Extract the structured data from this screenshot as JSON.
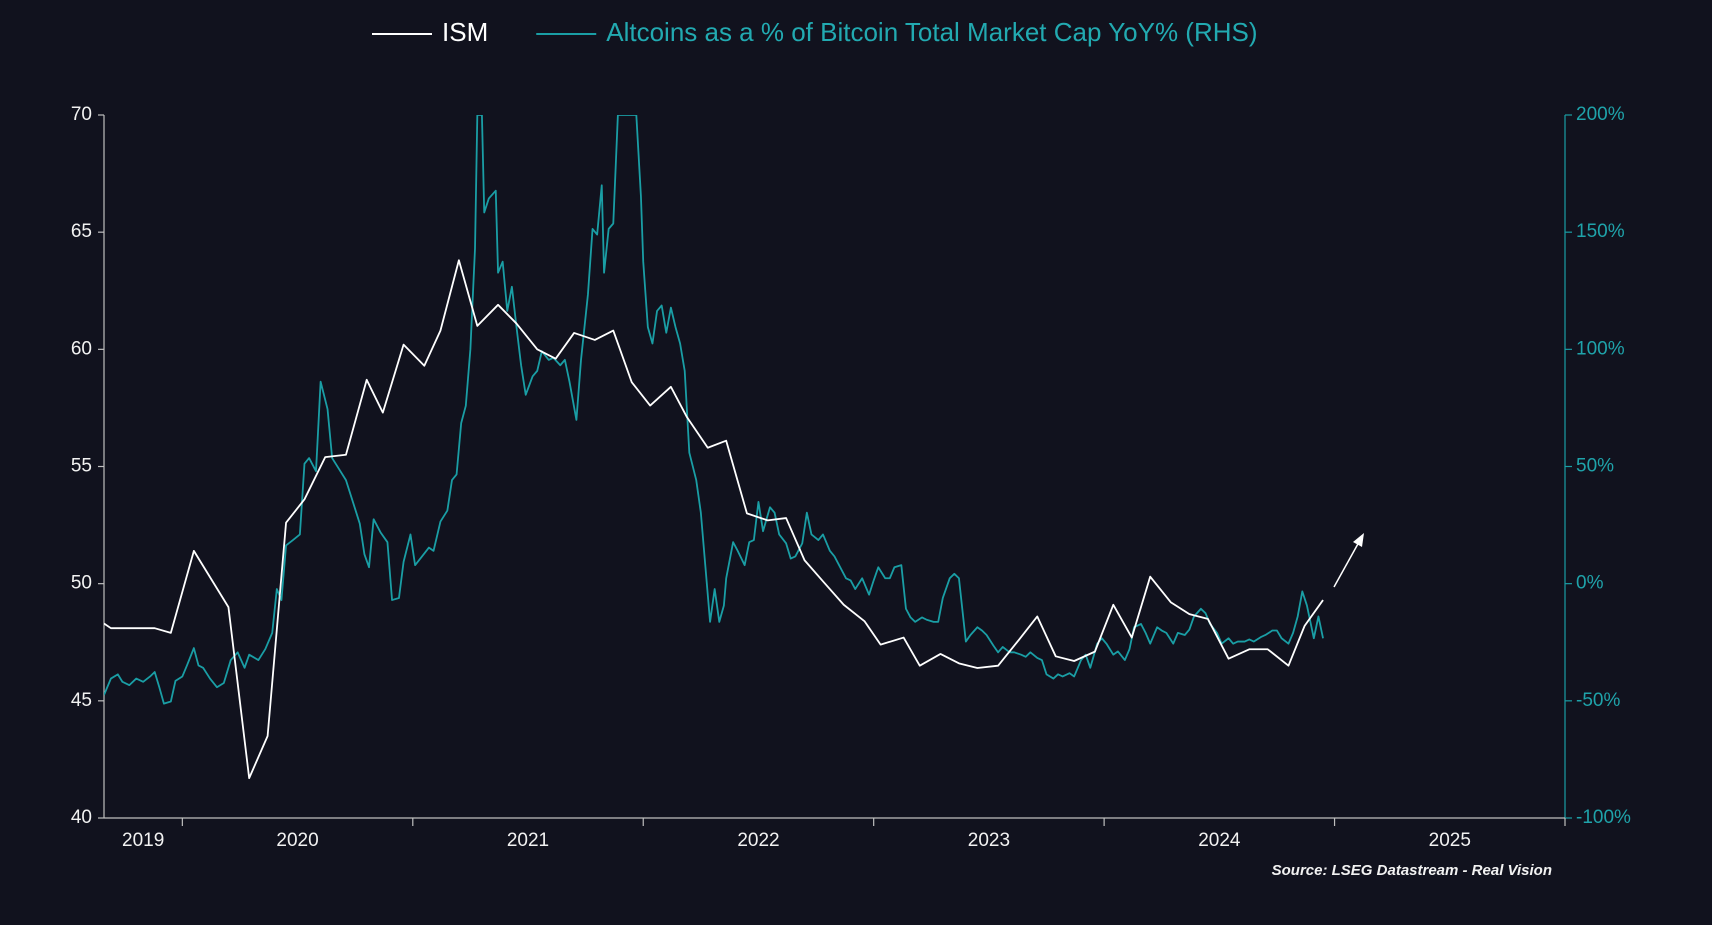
{
  "chart_data": {
    "type": "line",
    "source": "Source: LSEG Datastream - Real Vision",
    "xlim": [
      2019.66,
      2026
    ],
    "xtick_marks": [
      2020,
      2021,
      2022,
      2023,
      2024,
      2025,
      2026
    ],
    "xtick_labels": [
      {
        "value": 2019.83,
        "label": "2019"
      },
      {
        "value": 2020.5,
        "label": "2020"
      },
      {
        "value": 2021.5,
        "label": "2021"
      },
      {
        "value": 2022.5,
        "label": "2022"
      },
      {
        "value": 2023.5,
        "label": "2023"
      },
      {
        "value": 2024.5,
        "label": "2024"
      },
      {
        "value": 2025.5,
        "label": "2025"
      }
    ],
    "ylim": [
      40,
      70
    ],
    "yticks": [
      40,
      45,
      50,
      55,
      60,
      65,
      70
    ],
    "y2lim": [
      -100,
      200
    ],
    "y2ticks": [
      {
        "value": -100,
        "label": "-100%"
      },
      {
        "value": -50,
        "label": "-50%"
      },
      {
        "value": 0,
        "label": "0%"
      },
      {
        "value": 50,
        "label": "50%"
      },
      {
        "value": 100,
        "label": "100%"
      },
      {
        "value": 150,
        "label": "150%"
      },
      {
        "value": 200,
        "label": "200%"
      }
    ],
    "series": [
      {
        "name": "ISM",
        "color": "#ffffff",
        "x": [
          2019.66,
          2019.69,
          2019.88,
          2019.95,
          2020.05,
          2020.2,
          2020.29,
          2020.37,
          2020.45,
          2020.53,
          2020.62,
          2020.71,
          2020.8,
          2020.87,
          2020.96,
          2021.05,
          2021.12,
          2021.2,
          2021.28,
          2021.37,
          2021.45,
          2021.54,
          2021.62,
          2021.7,
          2021.79,
          2021.87,
          2021.95,
          2022.03,
          2022.12,
          2022.19,
          2022.28,
          2022.36,
          2022.45,
          2022.54,
          2022.62,
          2022.7,
          2022.78,
          2022.87,
          2022.96,
          2023.03,
          2023.13,
          2023.2,
          2023.29,
          2023.37,
          2023.45,
          2023.54,
          2023.63,
          2023.71,
          2023.79,
          2023.87,
          2023.96,
          2024.04,
          2024.12,
          2024.2,
          2024.29,
          2024.37,
          2024.45,
          2024.54,
          2024.63,
          2024.71,
          2024.8,
          2024.87,
          2024.95
        ],
        "values": [
          48.3,
          48.1,
          48.1,
          47.9,
          51.4,
          49.0,
          41.7,
          43.5,
          52.6,
          53.6,
          55.4,
          55.5,
          58.7,
          57.3,
          60.2,
          59.3,
          60.8,
          63.8,
          61.0,
          61.9,
          61.1,
          60.0,
          59.6,
          60.7,
          60.4,
          60.8,
          58.6,
          57.6,
          58.4,
          57.1,
          55.8,
          56.1,
          53.0,
          52.7,
          52.8,
          51.0,
          50.1,
          49.1,
          48.4,
          47.4,
          47.7,
          46.5,
          47.0,
          46.6,
          46.4,
          46.5,
          47.6,
          48.6,
          46.9,
          46.7,
          47.1,
          49.1,
          47.7,
          50.3,
          49.2,
          48.7,
          48.5,
          46.8,
          47.2,
          47.2,
          46.5,
          48.2,
          49.3
        ]
      },
      {
        "name": "Altcoins as a % of Bitcoin Total Market Cap YoY% (RHS)",
        "color": "#1a9ea5",
        "axis": "y2",
        "x": [
          2019.66,
          2019.69,
          2019.72,
          2019.74,
          2019.77,
          2019.8,
          2019.83,
          2019.86,
          2019.88,
          2019.9,
          2019.92,
          2019.95,
          2019.97,
          2020.0,
          2020.02,
          2020.05,
          2020.07,
          2020.09,
          2020.12,
          2020.15,
          2020.18,
          2020.21,
          2020.24,
          2020.27,
          2020.29,
          2020.33,
          2020.36,
          2020.39,
          2020.41,
          2020.43,
          2020.45,
          2020.48,
          2020.51,
          2020.53,
          2020.55,
          2020.58,
          2020.6,
          2020.63,
          2020.65,
          2020.68,
          2020.71,
          2020.74,
          2020.77,
          2020.79,
          2020.81,
          2020.83,
          2020.86,
          2020.89,
          2020.91,
          2020.94,
          2020.96,
          2020.99,
          2021.01,
          2021.04,
          2021.07,
          2021.09,
          2021.12,
          2021.15,
          2021.17,
          2021.19,
          2021.21,
          2021.23,
          2021.25,
          2021.27,
          2021.28,
          2021.3,
          2021.31,
          2021.33,
          2021.36,
          2021.37,
          2021.39,
          2021.41,
          2021.43,
          2021.45,
          2021.47,
          2021.49,
          2021.52,
          2021.54,
          2021.56,
          2021.59,
          2021.61,
          2021.64,
          2021.66,
          2021.68,
          2021.71,
          2021.73,
          2021.76,
          2021.78,
          2021.8,
          2021.82,
          2021.83,
          2021.85,
          2021.87,
          2021.89,
          2021.91,
          2021.97,
          2021.99,
          2022.0,
          2022.02,
          2022.04,
          2022.06,
          2022.08,
          2022.1,
          2022.12,
          2022.14,
          2022.16,
          2022.18,
          2022.2,
          2022.23,
          2022.25,
          2022.27,
          2022.29,
          2022.31,
          2022.33,
          2022.35,
          2022.36,
          2022.39,
          2022.41,
          2022.44,
          2022.46,
          2022.48,
          2022.5,
          2022.52,
          2022.55,
          2022.57,
          2022.59,
          2022.62,
          2022.64,
          2022.66,
          2022.69,
          2022.71,
          2022.73,
          2022.76,
          2022.78,
          2022.81,
          2022.83,
          2022.85,
          2022.88,
          2022.9,
          2022.92,
          2022.95,
          2022.98,
          2023.0,
          2023.02,
          2023.05,
          2023.07,
          2023.09,
          2023.12,
          2023.14,
          2023.16,
          2023.18,
          2023.21,
          2023.23,
          2023.26,
          2023.28,
          2023.3,
          2023.33,
          2023.35,
          2023.37,
          2023.4,
          2023.42,
          2023.45,
          2023.47,
          2023.49,
          2023.52,
          2023.54,
          2023.56,
          2023.59,
          2023.61,
          2023.64,
          2023.66,
          2023.68,
          2023.71,
          2023.73,
          2023.75,
          2023.78,
          2023.8,
          2023.82,
          2023.85,
          2023.87,
          2023.9,
          2023.92,
          2023.94,
          2023.97,
          2023.99,
          2024.01,
          2024.04,
          2024.06,
          2024.09,
          2024.11,
          2024.13,
          2024.16,
          2024.18,
          2024.2,
          2024.23,
          2024.25,
          2024.27,
          2024.3,
          2024.32,
          2024.35,
          2024.37,
          2024.39,
          2024.42,
          2024.44,
          2024.46,
          2024.49,
          2024.51,
          2024.54,
          2024.56,
          2024.58,
          2024.61,
          2024.63,
          2024.65,
          2024.68,
          2024.7,
          2024.73,
          2024.75,
          2024.77,
          2024.8,
          2024.82,
          2024.84,
          2024.86,
          2024.88,
          2024.9,
          2024.91,
          2024.93,
          2024.95
        ],
        "values": [
          -47.5,
          -40.5,
          -38.7,
          -41.9,
          -43.3,
          -40.5,
          -41.9,
          -39.6,
          -37.7,
          -44.2,
          -51.2,
          -50.3,
          -41.5,
          -39.6,
          -34.9,
          -27.5,
          -34.9,
          -35.9,
          -40.5,
          -44.2,
          -42.4,
          -32.6,
          -29.3,
          -35.9,
          -30.3,
          -32.6,
          -27.9,
          -21.0,
          -2.3,
          -7.0,
          16.3,
          18.6,
          21.0,
          51.2,
          53.6,
          48.0,
          86.2,
          74.5,
          53.6,
          48.9,
          44.2,
          34.9,
          25.6,
          12.6,
          7.0,
          27.5,
          21.9,
          17.7,
          -7.0,
          -6.1,
          9.3,
          21.0,
          7.9,
          11.6,
          15.4,
          14.0,
          26.5,
          31.2,
          44.2,
          46.6,
          68.5,
          75.9,
          100.1,
          143.0,
          200,
          200,
          158.4,
          164.4,
          167.7,
          132.7,
          137.4,
          116.4,
          126.7,
          109.5,
          93.2,
          80.6,
          88.5,
          90.8,
          99.2,
          95.5,
          96.4,
          93.2,
          95.5,
          86.2,
          69.9,
          95.5,
          123.4,
          151.4,
          149.0,
          170.0,
          132.7,
          151.4,
          153.7,
          200,
          200,
          200,
          165.3,
          137.4,
          109.5,
          102.5,
          116.4,
          118.7,
          107.1,
          117.8,
          109.5,
          102.5,
          90.8,
          55.9,
          44.2,
          30.3,
          7.0,
          -16.3,
          -2.3,
          -16.3,
          -9.3,
          2.3,
          17.7,
          14.0,
          7.9,
          17.7,
          18.6,
          34.9,
          22.4,
          32.6,
          30.3,
          21.0,
          17.2,
          10.7,
          11.6,
          17.2,
          30.3,
          21.0,
          18.6,
          21.0,
          14.0,
          11.6,
          7.9,
          2.3,
          1.4,
          -2.3,
          2.3,
          -4.7,
          1.4,
          7.0,
          2.3,
          2.3,
          7.0,
          7.9,
          -10.7,
          -14.4,
          -16.3,
          -14.4,
          -15.4,
          -16.3,
          -16.3,
          -6.1,
          2.3,
          4.2,
          2.3,
          -24.7,
          -21.9,
          -18.6,
          -20.0,
          -21.9,
          -26.5,
          -29.3,
          -27.0,
          -29.3,
          -29.3,
          -30.3,
          -31.2,
          -29.3,
          -31.7,
          -32.6,
          -38.7,
          -40.5,
          -38.7,
          -39.6,
          -38.2,
          -39.6,
          -32.6,
          -30.3,
          -35.9,
          -25.6,
          -23.3,
          -25.6,
          -30.3,
          -28.9,
          -32.6,
          -28.0,
          -18.6,
          -17.2,
          -21.0,
          -25.6,
          -18.6,
          -20.0,
          -21.0,
          -25.6,
          -21.0,
          -21.9,
          -19.6,
          -14.0,
          -10.7,
          -12.6,
          -17.2,
          -21.0,
          -25.6,
          -23.3,
          -25.6,
          -24.7,
          -24.7,
          -23.8,
          -24.7,
          -22.8,
          -21.9,
          -20.0,
          -20.0,
          -23.3,
          -25.6,
          -21.0,
          -14.0,
          -3.3,
          -9.3,
          -18.6,
          -23.3,
          -14.0,
          -23.3
        ]
      }
    ]
  }
}
